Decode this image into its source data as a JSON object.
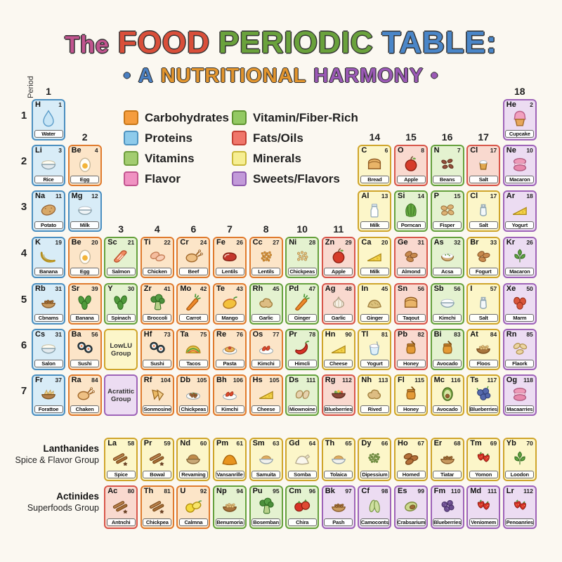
{
  "title": {
    "parts": [
      {
        "text": "The",
        "color": "#c2548f"
      },
      {
        "text": "FOOD",
        "color": "#d94f3a"
      },
      {
        "text": "PERIODIC",
        "color": "#6aa23c"
      },
      {
        "text": "TABLE:",
        "color": "#4a86c8"
      }
    ]
  },
  "subtitle": {
    "parts": [
      {
        "text": "•",
        "color": "#4a7fc1"
      },
      {
        "text": "A",
        "color": "#4a7fc1"
      },
      {
        "text": "NUTRITIONAL",
        "color": "#e2952e"
      },
      {
        "text": "HARMONY",
        "color": "#9b59b6"
      },
      {
        "text": "•",
        "color": "#9b59b6"
      }
    ]
  },
  "legend": {
    "columns": [
      [
        {
          "label": "Carbohydrates",
          "color": "#f59d3e",
          "border": "#c77617"
        },
        {
          "label": "Proteins",
          "color": "#8ecbeb",
          "border": "#4e93c0"
        },
        {
          "label": "Vitamins",
          "color": "#a3cd70",
          "border": "#6e9e3d"
        },
        {
          "label": "Flavor",
          "color": "#f092c2",
          "border": "#c2558f"
        }
      ],
      [
        {
          "label": "Vitamin/Fiber-Rich",
          "color": "#93c963",
          "border": "#5f9432"
        },
        {
          "label": "Fats/Oils",
          "color": "#f0766a",
          "border": "#c23f34"
        },
        {
          "label": "Minerals",
          "color": "#f6ee92",
          "border": "#c9b93a"
        },
        {
          "label": "Sweets/Flavors",
          "color": "#c29ad9",
          "border": "#8f5cae"
        }
      ]
    ]
  },
  "axis": {
    "period_label": "Period",
    "periods": [
      "1",
      "2",
      "3",
      "4",
      "5",
      "6",
      "7"
    ],
    "group_labels": [
      {
        "text": "1",
        "col": 1,
        "row": 1
      },
      {
        "text": "18",
        "col": 14,
        "row": 1
      },
      {
        "text": "2",
        "col": 2,
        "row": 2
      },
      {
        "text": "14",
        "col": 10,
        "row": 2
      },
      {
        "text": "15",
        "col": 11,
        "row": 2
      },
      {
        "text": "16",
        "col": 12,
        "row": 2
      },
      {
        "text": "17",
        "col": 13,
        "row": 2
      },
      {
        "text": "3",
        "col": 3,
        "row": 4
      },
      {
        "text": "4",
        "col": 4,
        "row": 4
      },
      {
        "text": "6",
        "col": 5,
        "row": 4
      },
      {
        "text": "7",
        "col": 6,
        "row": 4
      },
      {
        "text": "8",
        "col": 7,
        "row": 4
      },
      {
        "text": "10",
        "col": 8,
        "row": 4
      },
      {
        "text": "11",
        "col": 9,
        "row": 4
      }
    ]
  },
  "palette": {
    "blue": {
      "bg": "#d8ecf7",
      "border": "#4b8fc0"
    },
    "orange": {
      "bg": "#fce5c8",
      "border": "#e07b2e"
    },
    "green": {
      "bg": "#e4f2d0",
      "border": "#66a13d"
    },
    "red": {
      "bg": "#f9d9cf",
      "border": "#d8564a"
    },
    "yellow": {
      "bg": "#fcf6c9",
      "border": "#cfa52b"
    },
    "purple": {
      "bg": "#ecdcf2",
      "border": "#9e63b8"
    }
  },
  "table": {
    "rows": [
      [
        {
          "s": "H",
          "n": "1",
          "nm": "Water",
          "c": "blue",
          "i": "drop",
          "col": 1
        },
        {
          "s": "He",
          "n": "2",
          "nm": "Cupcake",
          "c": "purple",
          "i": "cupcake",
          "col": 14
        }
      ],
      [
        {
          "s": "Li",
          "n": "3",
          "nm": "Rice",
          "c": "blue",
          "i": "ricebowl",
          "col": 1
        },
        {
          "s": "Be",
          "n": "4",
          "nm": "Egg",
          "c": "orange",
          "i": "egg",
          "col": 2
        },
        {
          "s": "C",
          "n": "6",
          "nm": "Bread",
          "c": "yellow",
          "i": "bread",
          "col": 10
        },
        {
          "s": "O",
          "n": "8",
          "nm": "Apple",
          "c": "red",
          "i": "apple",
          "col": 11
        },
        {
          "s": "N",
          "n": "7",
          "nm": "Beans",
          "c": "green",
          "i": "beans",
          "col": 12
        },
        {
          "s": "Cl",
          "n": "17",
          "nm": "Salt",
          "c": "red",
          "i": "saltcup",
          "col": 13
        },
        {
          "s": "Ne",
          "n": "10",
          "nm": "Macaron",
          "c": "purple",
          "i": "macaron",
          "col": 14
        }
      ],
      [
        {
          "s": "Na",
          "n": "11",
          "nm": "Potato",
          "c": "blue",
          "i": "potato",
          "col": 1
        },
        {
          "s": "Mg",
          "n": "12",
          "nm": "Milk",
          "c": "blue",
          "i": "milkbowl",
          "col": 2
        },
        {
          "s": "Al",
          "n": "13",
          "nm": "Milk",
          "c": "yellow",
          "i": "milkbottle",
          "col": 10
        },
        {
          "s": "Si",
          "n": "14",
          "nm": "Porncan",
          "c": "green",
          "i": "lettuce",
          "col": 11
        },
        {
          "s": "P",
          "n": "15",
          "nm": "Fisper",
          "c": "green",
          "i": "tubers",
          "col": 12
        },
        {
          "s": "Cl",
          "n": "17",
          "nm": "Salt",
          "c": "yellow",
          "i": "saltshaker",
          "col": 13
        },
        {
          "s": "Ar",
          "n": "18",
          "nm": "Yogurt",
          "c": "purple",
          "i": "cheese",
          "col": 14
        }
      ],
      [
        {
          "s": "K",
          "n": "19",
          "nm": "Banana",
          "c": "blue",
          "i": "banana",
          "col": 1
        },
        {
          "s": "Be",
          "n": "20",
          "nm": "Egg",
          "c": "orange",
          "i": "egg",
          "col": 2
        },
        {
          "s": "Sc",
          "n": "21",
          "nm": "Salmon",
          "c": "green",
          "i": "salmon",
          "col": 3
        },
        {
          "s": "Ti",
          "n": "22",
          "nm": "Chicken",
          "c": "orange",
          "i": "fillets",
          "col": 4
        },
        {
          "s": "Cr",
          "n": "24",
          "nm": "Beef",
          "c": "orange",
          "i": "roast",
          "col": 5
        },
        {
          "s": "Fe",
          "n": "26",
          "nm": "Lentils",
          "c": "orange",
          "i": "steak",
          "col": 6
        },
        {
          "s": "Cc",
          "n": "27",
          "nm": "Lentils",
          "c": "orange",
          "i": "lentils",
          "col": 7
        },
        {
          "s": "Ni",
          "n": "28",
          "nm": "Chickpeas",
          "c": "green",
          "i": "chickpeas",
          "col": 8
        },
        {
          "s": "Zn",
          "n": "29",
          "nm": "Apple",
          "c": "red",
          "i": "apple",
          "col": 9
        },
        {
          "s": "Ca",
          "n": "20",
          "nm": "Milk",
          "c": "yellow",
          "i": "cheese",
          "col": 10
        },
        {
          "s": "Ge",
          "n": "31",
          "nm": "Almond",
          "c": "red",
          "i": "almonds",
          "col": 11
        },
        {
          "s": "As",
          "n": "32",
          "nm": "Acsa",
          "c": "green",
          "i": "creambowl",
          "col": 12
        },
        {
          "s": "Br",
          "n": "33",
          "nm": "Fogurt",
          "c": "yellow",
          "i": "almonds",
          "col": 13
        },
        {
          "s": "Kr",
          "n": "26",
          "nm": "Macaron",
          "c": "purple",
          "i": "leaves",
          "col": 14
        }
      ],
      [
        {
          "s": "Rb",
          "n": "31",
          "nm": "Cbnams",
          "c": "blue",
          "i": "beansbowl",
          "col": 1
        },
        {
          "s": "Sr",
          "n": "39",
          "nm": "Banana",
          "c": "orange",
          "i": "spinach",
          "col": 2
        },
        {
          "s": "Y",
          "n": "30",
          "nm": "Spinach",
          "c": "green",
          "i": "spinach",
          "col": 3
        },
        {
          "s": "Zr",
          "n": "41",
          "nm": "Broccoli",
          "c": "orange",
          "i": "broccoli",
          "col": 4
        },
        {
          "s": "Mo",
          "n": "42",
          "nm": "Carrot",
          "c": "orange",
          "i": "carrot",
          "col": 5
        },
        {
          "s": "Te",
          "n": "43",
          "nm": "Mango",
          "c": "orange",
          "i": "mango",
          "col": 6
        },
        {
          "s": "Rh",
          "n": "45",
          "nm": "Garlic",
          "c": "green",
          "i": "gingerroot",
          "col": 7
        },
        {
          "s": "Pd",
          "n": "47",
          "nm": "Ginger",
          "c": "green",
          "i": "carrot",
          "col": 8
        },
        {
          "s": "Ag",
          "n": "48",
          "nm": "Garlic",
          "c": "red",
          "i": "garlic",
          "col": 9
        },
        {
          "s": "In",
          "n": "45",
          "nm": "Ginger",
          "c": "yellow",
          "i": "gingerpile",
          "col": 10
        },
        {
          "s": "Sn",
          "n": "56",
          "nm": "Taqout",
          "c": "red",
          "i": "bread",
          "col": 11
        },
        {
          "s": "Sb",
          "n": "56",
          "nm": "Kimchi",
          "c": "green",
          "i": "milkbowl",
          "col": 12
        },
        {
          "s": "I",
          "n": "57",
          "nm": "Salt",
          "c": "yellow",
          "i": "saltshaker",
          "col": 13
        },
        {
          "s": "Xe",
          "n": "50",
          "nm": "Marm",
          "c": "purple",
          "i": "redfruit",
          "col": 14
        }
      ],
      [
        {
          "s": "Cs",
          "n": "31",
          "nm": "Salon",
          "c": "blue",
          "i": "ricebowl",
          "col": 1
        },
        {
          "s": "Ba",
          "n": "56",
          "nm": "Sushi",
          "c": "orange",
          "i": "sushi",
          "col": 2
        },
        {
          "s": "Hf",
          "n": "73",
          "nm": "Sushi",
          "c": "orange",
          "i": "sushi",
          "col": 4
        },
        {
          "s": "Ta",
          "n": "75",
          "nm": "Tacos",
          "c": "orange",
          "i": "taco",
          "col": 5
        },
        {
          "s": "Re",
          "n": "76",
          "nm": "Pasta",
          "c": "orange",
          "i": "pasta",
          "col": 6
        },
        {
          "s": "Os",
          "n": "77",
          "nm": "Kimchi",
          "c": "orange",
          "i": "kimchiplate",
          "col": 7
        },
        {
          "s": "Pr",
          "n": "78",
          "nm": "Himcli",
          "c": "green",
          "i": "chili",
          "col": 8
        },
        {
          "s": "Hn",
          "n": "90",
          "nm": "Cheese",
          "c": "yellow",
          "i": "cheese",
          "col": 9
        },
        {
          "s": "Tl",
          "n": "81",
          "nm": "Yogurt",
          "c": "yellow",
          "i": "yogurtcup",
          "col": 10
        },
        {
          "s": "Pb",
          "n": "82",
          "nm": "Honey",
          "c": "red",
          "i": "honeyjar",
          "col": 11
        },
        {
          "s": "Bi",
          "n": "83",
          "nm": "Avocado",
          "c": "green",
          "i": "honeyjar",
          "col": 12
        },
        {
          "s": "At",
          "n": "84",
          "nm": "Floos",
          "c": "yellow",
          "i": "chickpeabowl",
          "col": 13
        },
        {
          "s": "Rn",
          "n": "85",
          "nm": "Flaork",
          "c": "purple",
          "i": "cashews",
          "col": 14
        }
      ],
      [
        {
          "s": "Fr",
          "n": "37",
          "nm": "Forattoe",
          "c": "blue",
          "i": "chipsbowl",
          "col": 1
        },
        {
          "s": "Ra",
          "n": "84",
          "nm": "Chaken",
          "c": "orange",
          "i": "roast",
          "col": 2
        },
        {
          "s": "Rf",
          "n": "104",
          "nm": "Sonmosine",
          "c": "orange",
          "i": "samosa",
          "col": 4
        },
        {
          "s": "Db",
          "n": "105",
          "nm": "Chickpeas",
          "c": "orange",
          "i": "stewplate",
          "col": 5
        },
        {
          "s": "Bh",
          "n": "106",
          "nm": "Kimchi",
          "c": "orange",
          "i": "kimchiplate",
          "col": 6
        },
        {
          "s": "Hs",
          "n": "105",
          "nm": "Cheese",
          "c": "orange",
          "i": "cheese",
          "col": 7
        },
        {
          "s": "Ds",
          "n": "111",
          "nm": "Miownoine",
          "c": "green",
          "i": "breadpieces",
          "col": 8
        },
        {
          "s": "Rg",
          "n": "112",
          "nm": "Blueberries",
          "c": "red",
          "i": "saladbowl",
          "col": 9
        },
        {
          "s": "Nh",
          "n": "113",
          "nm": "Rived",
          "c": "yellow",
          "i": "gingerroot",
          "col": 10
        },
        {
          "s": "Fl",
          "n": "115",
          "nm": "Honey",
          "c": "yellow",
          "i": "honeyjar",
          "col": 11
        },
        {
          "s": "Mc",
          "n": "116",
          "nm": "Avocado",
          "c": "yellow",
          "i": "avocado",
          "col": 12
        },
        {
          "s": "Ts",
          "n": "117",
          "nm": "Blueberries",
          "c": "yellow",
          "i": "blueberries",
          "col": 13
        },
        {
          "s": "Og",
          "n": "118",
          "nm": "Macaarries",
          "c": "purple",
          "i": "macaron",
          "col": 14
        }
      ]
    ],
    "group_cells": [
      {
        "label": "LowLU Group",
        "c": "yellow",
        "col": 3,
        "row": 6
      },
      {
        "label": "Acratitic Group",
        "c": "purple",
        "col": 3,
        "row": 7
      }
    ]
  },
  "lanthanides": {
    "title": "Lanthanides",
    "subtitle": "Spice & Flavor Group",
    "cells": [
      {
        "s": "La",
        "n": "58",
        "nm": "Spice",
        "c": "yellow",
        "i": "cinnamon"
      },
      {
        "s": "Pr",
        "n": "59",
        "nm": "Bowal",
        "c": "yellow",
        "i": "cinnamon"
      },
      {
        "s": "Nd",
        "n": "60",
        "nm": "Revaming",
        "c": "yellow",
        "i": "powderbowl"
      },
      {
        "s": "Pm",
        "n": "61",
        "nm": "Vansanrille",
        "c": "yellow",
        "i": "turmeric"
      },
      {
        "s": "Sm",
        "n": "63",
        "nm": "Samuita",
        "c": "yellow",
        "i": "grainbowl"
      },
      {
        "s": "Gd",
        "n": "64",
        "nm": "Somba",
        "c": "yellow",
        "i": "sugarpile"
      },
      {
        "s": "Th",
        "n": "65",
        "nm": "Tolaica",
        "c": "yellow",
        "i": "grainbowl"
      },
      {
        "s": "Dy",
        "n": "66",
        "nm": "Dipessium",
        "c": "yellow",
        "i": "peppercorns"
      },
      {
        "s": "Ho",
        "n": "67",
        "nm": "Homed",
        "c": "yellow",
        "i": "dates"
      },
      {
        "s": "Er",
        "n": "68",
        "nm": "Tiatar",
        "c": "yellow",
        "i": "beansbowl"
      },
      {
        "s": "Tm",
        "n": "69",
        "nm": "Yomon",
        "c": "yellow",
        "i": "strawberries"
      },
      {
        "s": "Yb",
        "n": "70",
        "nm": "Loodon",
        "c": "yellow",
        "i": "leaves"
      }
    ]
  },
  "actinides": {
    "title": "Actinides",
    "subtitle": "Superfoods Group",
    "cells": [
      {
        "s": "Ac",
        "n": "80",
        "nm": "Antnchi",
        "c": "red",
        "i": "cinnamon"
      },
      {
        "s": "Th",
        "n": "81",
        "nm": "Chickpea",
        "c": "orange",
        "i": "cinnamon"
      },
      {
        "s": "U",
        "n": "92",
        "nm": "Calmna",
        "c": "orange",
        "i": "lemon"
      },
      {
        "s": "Np",
        "n": "94",
        "nm": "Benumoria",
        "c": "green",
        "i": "chickpeabowl"
      },
      {
        "s": "Pu",
        "n": "95",
        "nm": "Bosemban",
        "c": "green",
        "i": "broccoli"
      },
      {
        "s": "Cm",
        "n": "96",
        "nm": "Chira",
        "c": "green",
        "i": "tomato"
      },
      {
        "s": "Bk",
        "n": "97",
        "nm": "Pash",
        "c": "purple",
        "i": "beansbowl"
      },
      {
        "s": "Cf",
        "n": "98",
        "nm": "Camoconts",
        "c": "purple",
        "i": "cucumber"
      },
      {
        "s": "Es",
        "n": "99",
        "nm": "Crabsarium",
        "c": "purple",
        "i": "pistachio"
      },
      {
        "s": "Fm",
        "n": "110",
        "nm": "Blueberries",
        "c": "purple",
        "i": "blackberries"
      },
      {
        "s": "Md",
        "n": "111",
        "nm": "Veniomem",
        "c": "purple",
        "i": "strawberries"
      },
      {
        "s": "Lr",
        "n": "112",
        "nm": "Penoanries",
        "c": "purple",
        "i": "strawberries"
      }
    ]
  }
}
